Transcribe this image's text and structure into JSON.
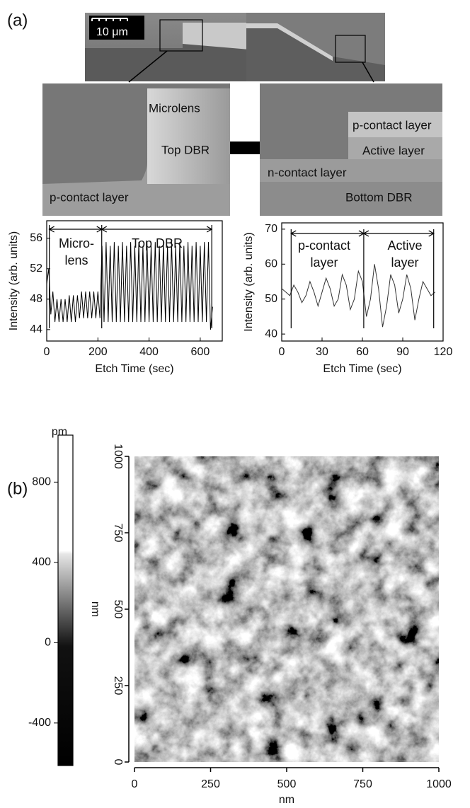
{
  "panel_labels": [
    "(a)",
    "(b)"
  ],
  "sem": {
    "scale_bar": "10 μm",
    "left_labels": [
      "Microlens",
      "Top DBR",
      "p-contact layer"
    ],
    "right_labels": [
      "p-contact layer",
      "Active layer",
      "n-contact layer",
      "Bottom DBR"
    ]
  },
  "chart_data": [
    {
      "type": "line",
      "xlabel": "Etch Time (sec)",
      "ylabel": "Intensity (arb. units)",
      "color": "#000000",
      "x": [
        0,
        8,
        16,
        24,
        32,
        40,
        48,
        56,
        64,
        72,
        80,
        88,
        96,
        104,
        112,
        120,
        128,
        136,
        144,
        152,
        160,
        168,
        176,
        184,
        192,
        200,
        208,
        216,
        224,
        232,
        240,
        248,
        256,
        264,
        272,
        280,
        288,
        296,
        304,
        312,
        320,
        328,
        336,
        344,
        352,
        360,
        368,
        376,
        384,
        392,
        400,
        408,
        416,
        424,
        432,
        440,
        448,
        456,
        464,
        472,
        480,
        488,
        496,
        504,
        512,
        520,
        528,
        536,
        544,
        552,
        560,
        568,
        576,
        584,
        592,
        600,
        608,
        616,
        624,
        632,
        640,
        648
      ],
      "values": [
        50,
        52,
        46,
        49,
        45,
        48,
        45,
        48,
        45,
        48,
        45,
        48.5,
        45,
        48.5,
        45,
        48.5,
        45.5,
        49,
        45.5,
        49,
        45.5,
        49,
        45.5,
        49,
        45.5,
        49,
        45.5,
        55,
        45,
        55.5,
        45,
        55,
        45,
        55.5,
        45,
        55,
        45,
        55.5,
        45,
        55,
        45,
        55.5,
        45,
        55,
        45,
        55.5,
        45,
        55,
        45,
        55.5,
        45,
        55,
        45,
        55.5,
        45,
        55,
        45,
        55.5,
        45,
        55,
        45,
        55.5,
        45,
        55,
        45,
        55.5,
        45,
        55,
        45,
        55.5,
        45,
        55,
        45,
        55.5,
        45,
        55,
        45,
        55.5,
        45,
        55.5,
        44,
        47
      ],
      "xlim": [
        0,
        686
      ],
      "ylim": [
        42.5,
        58.3
      ],
      "xticks": [
        0,
        200,
        400,
        600
      ],
      "yticks": [
        44,
        48,
        52,
        56
      ],
      "section_bounds": [
        10,
        215,
        645
      ],
      "annotations": [
        [
          "Micro-",
          "lens"
        ],
        [
          "Top DBR"
        ]
      ]
    },
    {
      "type": "line",
      "xlabel": "Etch Time (sec)",
      "ylabel": "Intensity (arb. units)",
      "color": "#333333",
      "x": [
        0,
        3,
        6,
        9,
        12,
        15,
        18,
        21,
        24,
        27,
        30,
        33,
        36,
        39,
        42,
        45,
        48,
        51,
        54,
        57,
        60,
        63,
        66,
        69,
        72,
        75,
        78,
        81,
        84,
        87,
        90,
        93,
        96,
        99,
        102,
        105,
        108,
        111,
        114
      ],
      "values": [
        53,
        52,
        51,
        54,
        52,
        49,
        51,
        55,
        52,
        48,
        52,
        56,
        53,
        48,
        50,
        57,
        54,
        47,
        50,
        58,
        55,
        45,
        50,
        60,
        53,
        42,
        48,
        57,
        54,
        46,
        50,
        57,
        53,
        44,
        50,
        55,
        53,
        51,
        52
      ],
      "xlim": [
        0,
        120
      ],
      "ylim": [
        38,
        71.8
      ],
      "xticks": [
        0,
        30,
        60,
        90,
        120
      ],
      "yticks": [
        40,
        50,
        60,
        70
      ],
      "section_bounds": [
        7,
        61,
        113
      ],
      "annotations": [
        [
          "p-contact",
          "layer"
        ],
        [
          "Active",
          "layer"
        ]
      ]
    },
    {
      "type": "colorbar",
      "title": "pm",
      "ylim": [
        -612,
        1034
      ],
      "yticks": [
        -400,
        0,
        400,
        800
      ]
    },
    {
      "type": "image",
      "xlabel": "nm",
      "ylabel": "nm",
      "xlim": [
        0,
        1000
      ],
      "ylim": [
        0,
        1000
      ],
      "xticks": [
        0,
        250,
        500,
        750,
        1000
      ],
      "yticks": [
        0,
        250,
        500,
        750,
        1000
      ]
    }
  ]
}
